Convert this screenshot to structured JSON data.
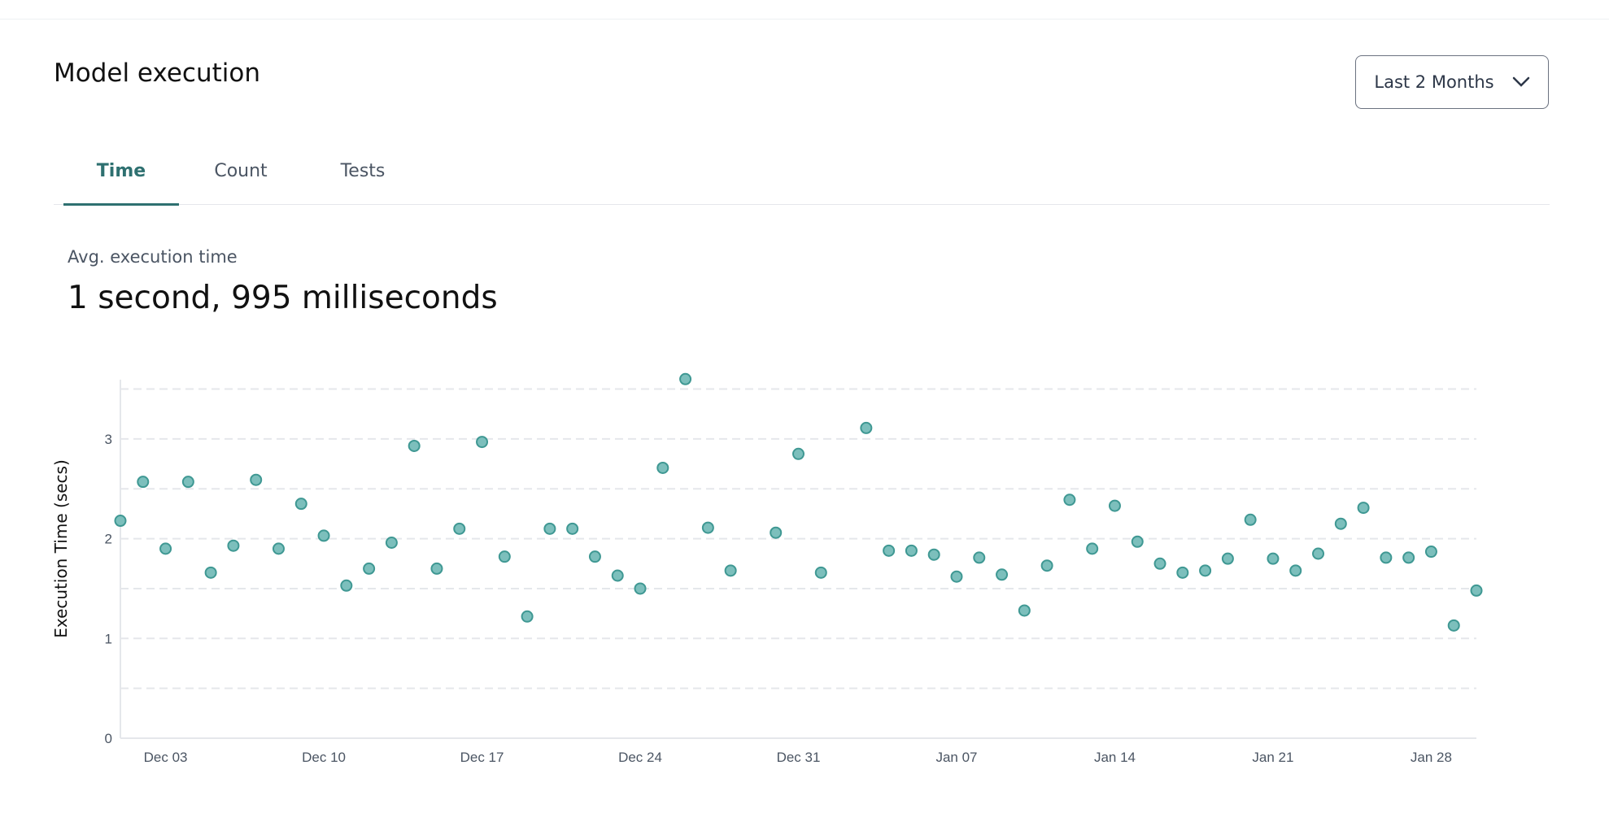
{
  "header": {
    "title": "Model execution",
    "range_select": {
      "selected": "Last 2 Months",
      "icon": "chevron-down-icon"
    }
  },
  "tabs": [
    {
      "label": "Time",
      "active": true
    },
    {
      "label": "Count",
      "active": false
    },
    {
      "label": "Tests",
      "active": false
    }
  ],
  "metric": {
    "label": "Avg. execution time",
    "value": "1 second, 995 milliseconds"
  },
  "colors": {
    "accent": "#2e7070",
    "point_fill": "#7cbfbc",
    "point_stroke": "#3f9893",
    "grid": "#e5e7eb"
  },
  "chart_data": {
    "type": "scatter",
    "title": "",
    "xlabel": "",
    "ylabel": "Execution Time (secs)",
    "ylim": [
      0,
      3.6
    ],
    "yticks": [
      "0",
      "1",
      "2",
      "3"
    ],
    "xticks": [
      "Dec 03",
      "Dec 10",
      "Dec 17",
      "Dec 24",
      "Dec 31",
      "Jan 07",
      "Jan 14",
      "Jan 21",
      "Jan 28"
    ],
    "xrange": [
      "Dec 01",
      "Jan 30"
    ],
    "grid": "horizontal dashed every 0.5",
    "points": [
      {
        "x": "Dec 01",
        "y": 2.18
      },
      {
        "x": "Dec 02",
        "y": 2.57
      },
      {
        "x": "Dec 03",
        "y": 1.9
      },
      {
        "x": "Dec 04",
        "y": 2.57
      },
      {
        "x": "Dec 05",
        "y": 1.66
      },
      {
        "x": "Dec 06",
        "y": 1.93
      },
      {
        "x": "Dec 07",
        "y": 2.59
      },
      {
        "x": "Dec 08",
        "y": 1.9
      },
      {
        "x": "Dec 09",
        "y": 2.35
      },
      {
        "x": "Dec 10",
        "y": 2.03
      },
      {
        "x": "Dec 11",
        "y": 1.53
      },
      {
        "x": "Dec 12",
        "y": 1.7
      },
      {
        "x": "Dec 13",
        "y": 1.96
      },
      {
        "x": "Dec 14",
        "y": 2.93
      },
      {
        "x": "Dec 15",
        "y": 1.7
      },
      {
        "x": "Dec 16",
        "y": 2.1
      },
      {
        "x": "Dec 17",
        "y": 2.97
      },
      {
        "x": "Dec 18",
        "y": 1.82
      },
      {
        "x": "Dec 19",
        "y": 1.22
      },
      {
        "x": "Dec 20",
        "y": 2.1
      },
      {
        "x": "Dec 21",
        "y": 2.1
      },
      {
        "x": "Dec 22",
        "y": 1.82
      },
      {
        "x": "Dec 23",
        "y": 1.63
      },
      {
        "x": "Dec 24",
        "y": 1.5
      },
      {
        "x": "Dec 25",
        "y": 2.71
      },
      {
        "x": "Dec 26",
        "y": 3.6
      },
      {
        "x": "Dec 27",
        "y": 2.11
      },
      {
        "x": "Dec 28",
        "y": 1.68
      },
      {
        "x": "Dec 30",
        "y": 2.06
      },
      {
        "x": "Dec 31",
        "y": 2.85
      },
      {
        "x": "Jan 01",
        "y": 1.66
      },
      {
        "x": "Jan 03",
        "y": 3.11
      },
      {
        "x": "Jan 04",
        "y": 1.88
      },
      {
        "x": "Jan 05",
        "y": 1.88
      },
      {
        "x": "Jan 06",
        "y": 1.84
      },
      {
        "x": "Jan 07",
        "y": 1.62
      },
      {
        "x": "Jan 08",
        "y": 1.81
      },
      {
        "x": "Jan 09",
        "y": 1.64
      },
      {
        "x": "Jan 10",
        "y": 1.28
      },
      {
        "x": "Jan 11",
        "y": 1.73
      },
      {
        "x": "Jan 12",
        "y": 2.39
      },
      {
        "x": "Jan 13",
        "y": 1.9
      },
      {
        "x": "Jan 14",
        "y": 2.33
      },
      {
        "x": "Jan 15",
        "y": 1.97
      },
      {
        "x": "Jan 16",
        "y": 1.75
      },
      {
        "x": "Jan 17",
        "y": 1.66
      },
      {
        "x": "Jan 18",
        "y": 1.68
      },
      {
        "x": "Jan 19",
        "y": 1.8
      },
      {
        "x": "Jan 20",
        "y": 2.19
      },
      {
        "x": "Jan 21",
        "y": 1.8
      },
      {
        "x": "Jan 22",
        "y": 1.68
      },
      {
        "x": "Jan 23",
        "y": 1.85
      },
      {
        "x": "Jan 24",
        "y": 2.15
      },
      {
        "x": "Jan 25",
        "y": 2.31
      },
      {
        "x": "Jan 26",
        "y": 1.81
      },
      {
        "x": "Jan 27",
        "y": 1.81
      },
      {
        "x": "Jan 28",
        "y": 1.87
      },
      {
        "x": "Jan 29",
        "y": 1.13
      },
      {
        "x": "Jan 30",
        "y": 1.48
      }
    ]
  }
}
